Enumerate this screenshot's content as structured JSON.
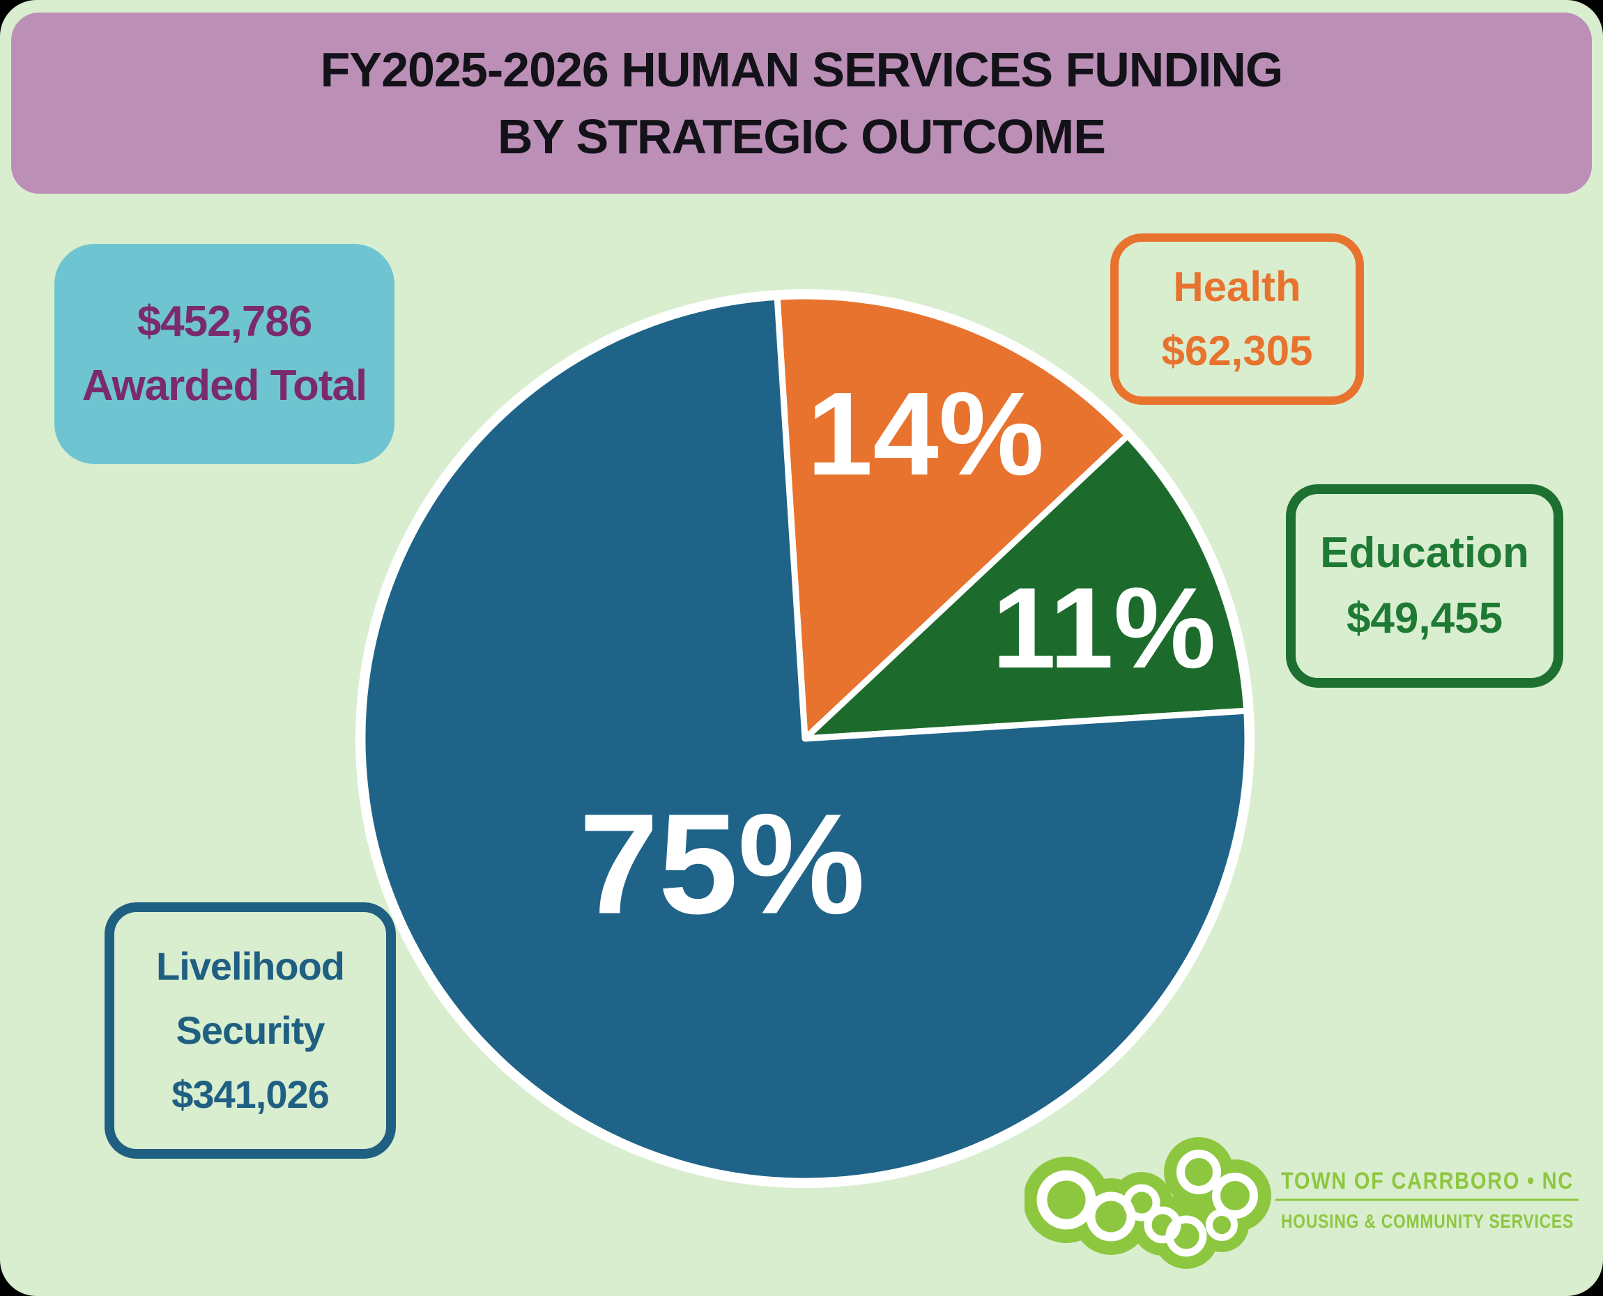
{
  "header": {
    "line1": "FY2025-2026 HUMAN SERVICES FUNDING",
    "line2": "BY STRATEGIC OUTCOME"
  },
  "total_box": {
    "line1": "$452,786",
    "line2": "Awarded Total"
  },
  "callouts": {
    "health": {
      "line1": "Health",
      "line2": "$62,305"
    },
    "education": {
      "line1": "Education",
      "line2": "$49,455"
    },
    "livelihood": {
      "line1": "Livelihood",
      "line2": "Security",
      "line3": "$341,026"
    }
  },
  "chart_data": {
    "type": "pie",
    "title": "FY2025-2026 Human Services Funding by Strategic Outcome",
    "total_awarded": "$452,786",
    "slices": [
      {
        "label": "Health",
        "amount": "$62,305",
        "percent": 14,
        "color": "#e8732e"
      },
      {
        "label": "Education",
        "amount": "$49,455",
        "percent": 11,
        "color": "#1d6b2c"
      },
      {
        "label": "Livelihood Security",
        "amount": "$341,026",
        "percent": 75,
        "color": "#1f6488"
      }
    ],
    "start_angle_deg": -3.6,
    "clockwise": true,
    "slice_label_format": "percent",
    "slice_label_color": "#ffffff",
    "separator_color": "#ffffff",
    "legend_position": "callout-boxes"
  },
  "footer": {
    "org": "TOWN OF CARRBORO • NC",
    "dept": "HOUSING & COMMUNITY SERVICES",
    "logo_word": "carrboro",
    "logo_icon": "carrboro-bubbles-logo",
    "logo_color": "#8dc73f"
  },
  "colors": {
    "page_background": "#d9eecf",
    "banner_background": "#bc8fb6",
    "banner_text": "#121218",
    "total_box_background": "#6ec5d1",
    "total_box_text": "#7b2a6e",
    "health_accent": "#e8732e",
    "education_accent": "#1d7030",
    "livelihood_accent": "#1f5f82",
    "logo_green": "#8dc73f"
  }
}
